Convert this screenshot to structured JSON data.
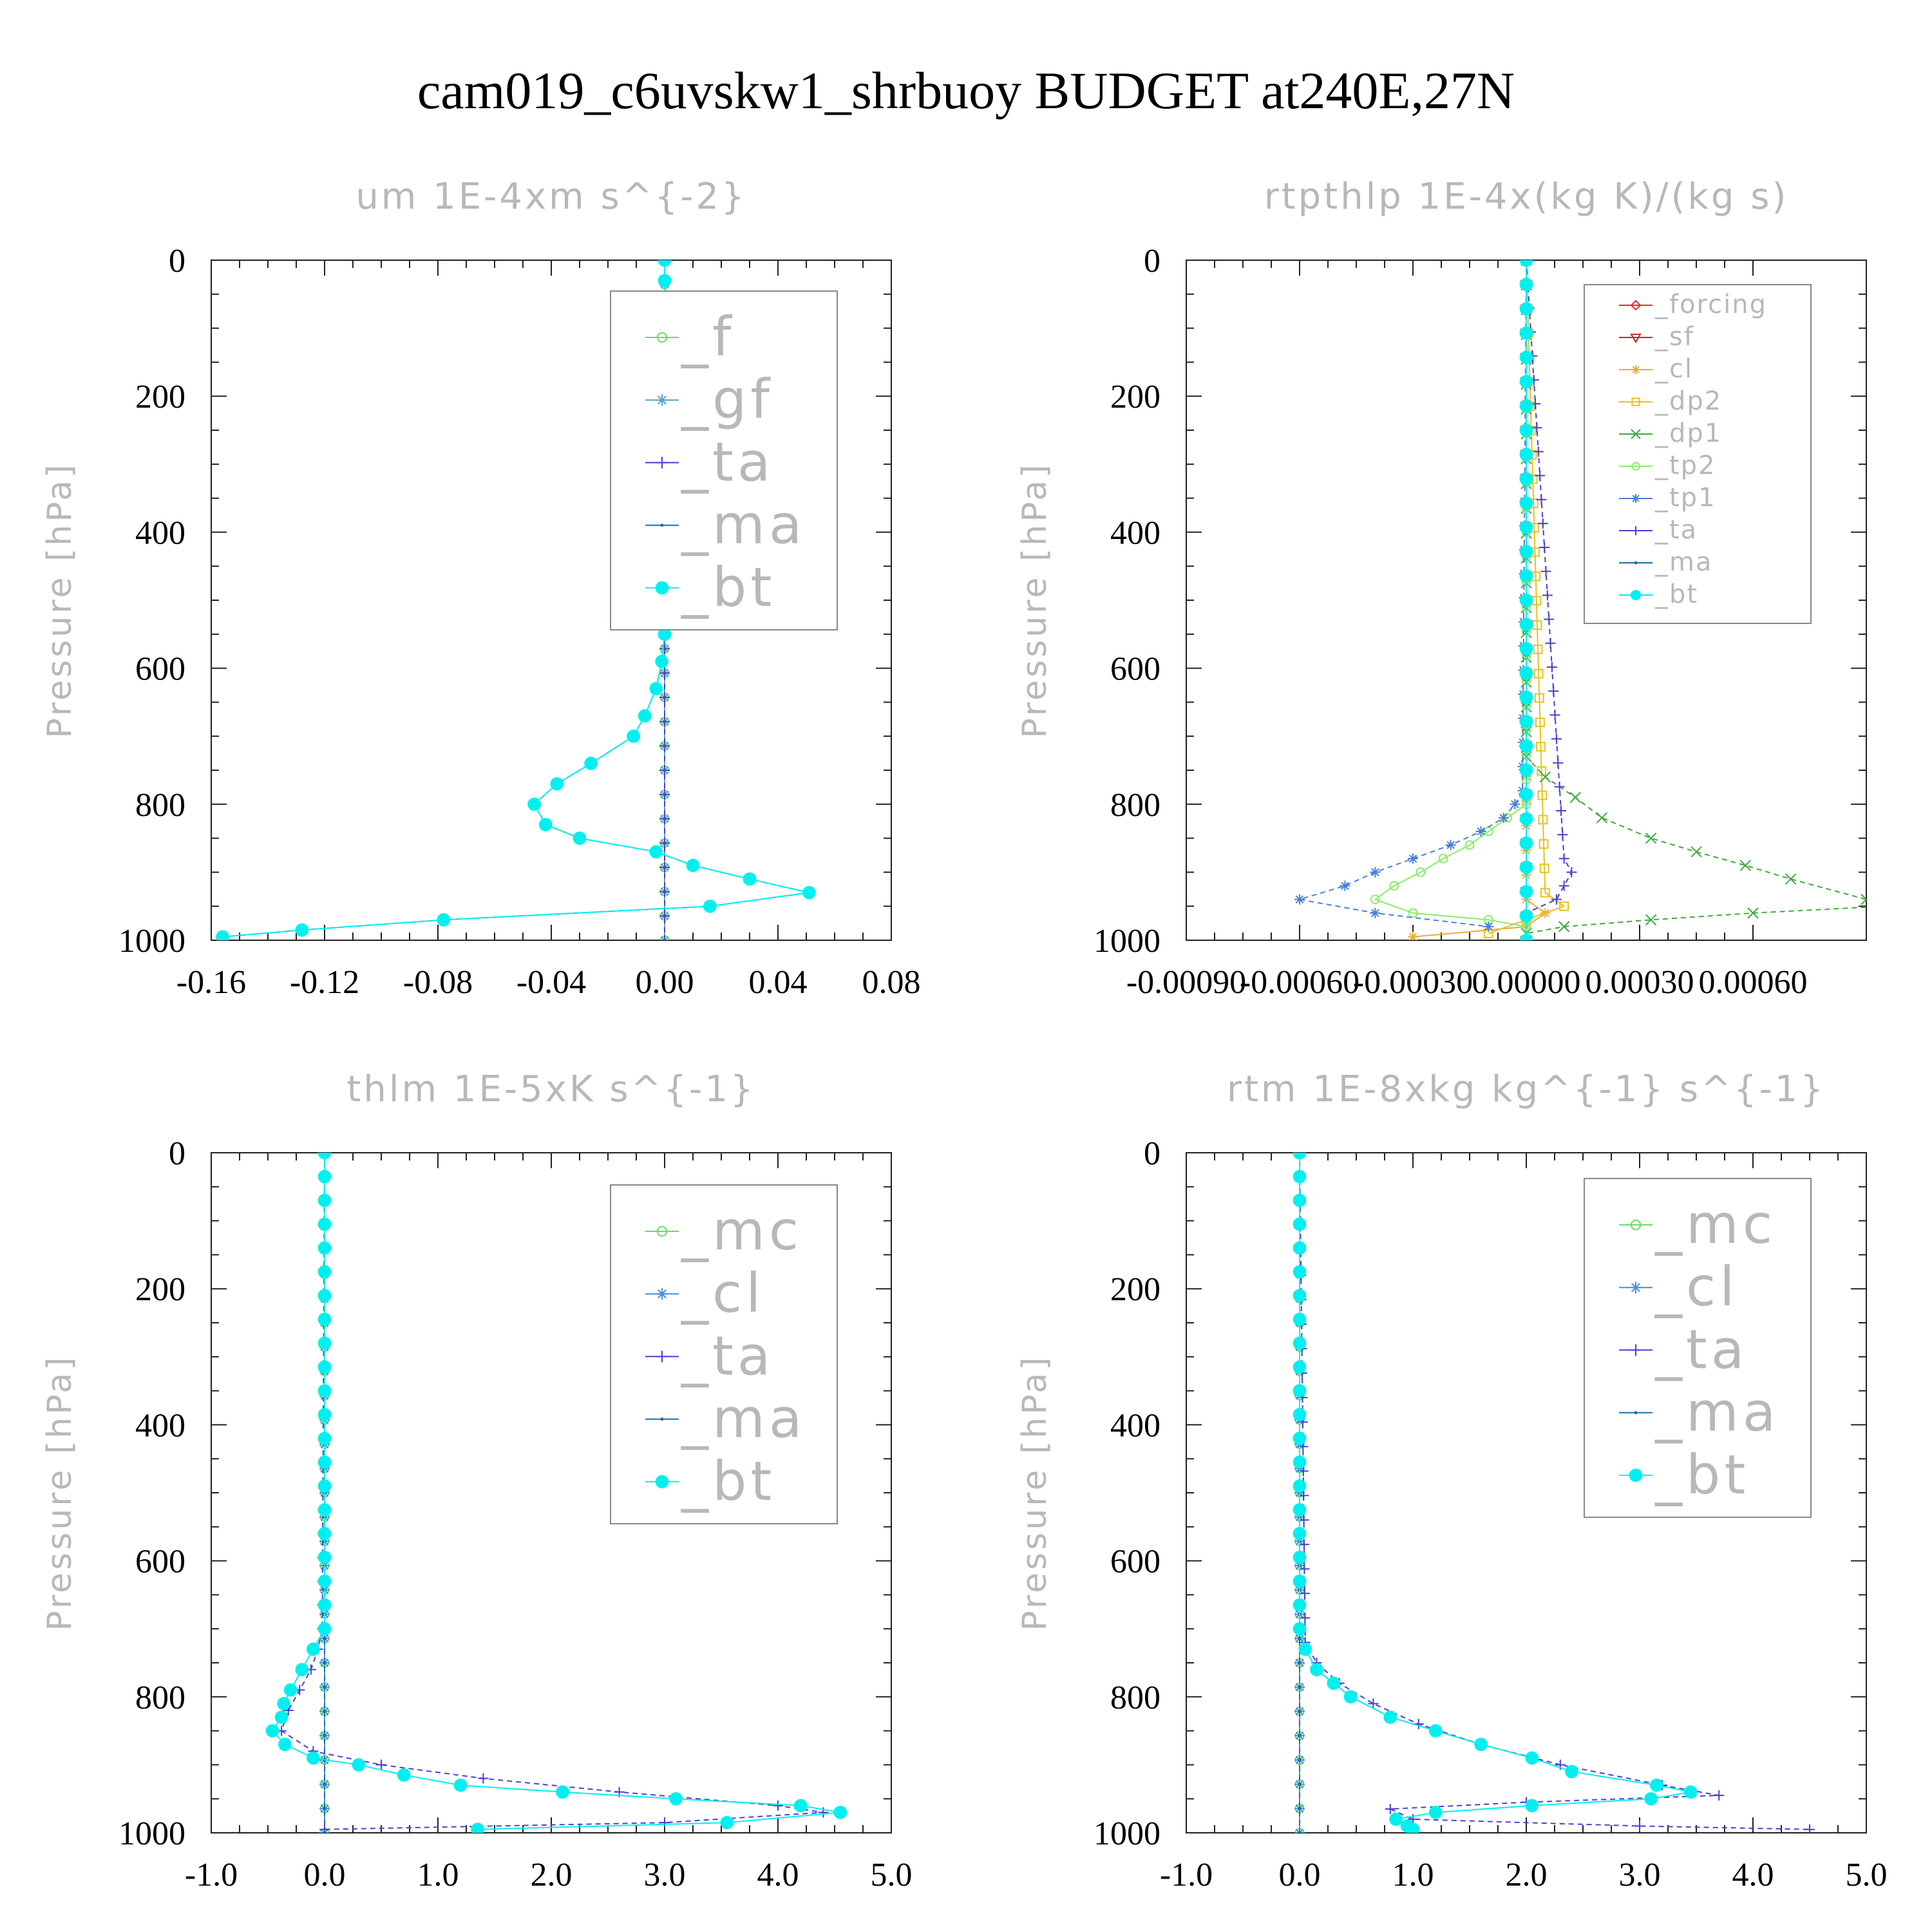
{
  "title": "cam019_c6uvskw1_shrbuoy  BUDGET at240E,27N",
  "colors": {
    "f": "#66dd66",
    "gf": "#5aa0c8",
    "ta": "#4a3fd0",
    "ma": "#1a6ea8",
    "bt": "#00f0f0",
    "forcing": "#e23030",
    "sf": "#d02020",
    "cl": "#4a8fd8",
    "cl_top": "#e8b030",
    "dp2": "#e8c020",
    "dp1": "#3caa3c",
    "tp2": "#88ee66",
    "tp1": "#4a7fd8",
    "mc": "#66dd66",
    "axis_text": "#000000",
    "label_gray": "#b8b8b8"
  },
  "chart_data": [
    {
      "type": "line",
      "title": "um  1E-4xm s^{-2}",
      "ylabel": "Pressure [hPa]",
      "xlim": [
        -0.16,
        0.08
      ],
      "ylim": [
        1000,
        0
      ],
      "xticks": [
        -0.16,
        -0.12,
        -0.08,
        -0.04,
        0.0,
        0.04,
        0.08
      ],
      "xtick_labels": [
        "-0.16",
        "-0.12",
        "-0.08",
        "-0.04",
        "0.00",
        "0.04",
        "0.08"
      ],
      "yticks": [
        0,
        200,
        400,
        600,
        800,
        1000
      ],
      "ytick_labels": [
        "0",
        "200",
        "400",
        "600",
        "800",
        "1000"
      ],
      "legend": [
        "_f",
        "_gf",
        "_ta",
        "_ma",
        "_bt"
      ],
      "legend_loc": "top-right",
      "series": [
        {
          "name": "_f",
          "p": [
            0,
            1000
          ],
          "x": [
            0.0,
            0.0
          ]
        },
        {
          "name": "_gf",
          "p": [
            0,
            1000
          ],
          "x": [
            0.0,
            0.0
          ]
        },
        {
          "name": "_ta",
          "p": [
            0,
            1000
          ],
          "x": [
            0.0,
            0.0
          ]
        },
        {
          "name": "_ma",
          "p": [
            0,
            30,
            60,
            100,
            120,
            140,
            170,
            200,
            220,
            250,
            270,
            290,
            310,
            340,
            380,
            410,
            450,
            480,
            510,
            550,
            590,
            630,
            670,
            700,
            740,
            770,
            800,
            830,
            850,
            870,
            890,
            910,
            930,
            950,
            970,
            985,
            995
          ],
          "x": [
            0.0,
            0.0,
            0.0,
            0.003,
            0.002,
            -0.002,
            -0.012,
            -0.014,
            -0.016,
            -0.007,
            -0.002,
            0.006,
            0.009,
            0.01,
            0.0,
            0.0,
            0.0,
            0.001,
            0.001,
            0.0,
            -0.001,
            -0.003,
            -0.007,
            -0.011,
            -0.026,
            -0.038,
            -0.046,
            -0.042,
            -0.03,
            -0.003,
            0.01,
            0.03,
            0.051,
            0.016,
            -0.078,
            -0.128,
            -0.156
          ]
        },
        {
          "name": "_bt",
          "p": [
            0,
            30,
            60,
            100,
            120,
            140,
            170,
            200,
            220,
            250,
            270,
            290,
            310,
            340,
            380,
            410,
            450,
            480,
            510,
            550,
            590,
            630,
            670,
            700,
            740,
            770,
            800,
            830,
            850,
            870,
            890,
            910,
            930,
            950,
            970,
            985,
            995
          ],
          "x": [
            0.0,
            0.0,
            0.0,
            0.003,
            0.002,
            -0.002,
            -0.012,
            -0.014,
            -0.016,
            -0.007,
            -0.002,
            0.006,
            0.009,
            0.01,
            0.0,
            0.0,
            0.0,
            0.001,
            0.001,
            0.0,
            -0.001,
            -0.003,
            -0.007,
            -0.011,
            -0.026,
            -0.038,
            -0.046,
            -0.042,
            -0.03,
            -0.003,
            0.01,
            0.03,
            0.051,
            0.016,
            -0.078,
            -0.128,
            -0.156
          ]
        }
      ]
    },
    {
      "type": "line",
      "title": "rtpthlp  1E-4x(kg K)/(kg s)",
      "ylabel": "Pressure [hPa]",
      "xlim": [
        -0.0009,
        0.0009
      ],
      "ylim": [
        1000,
        0
      ],
      "xticks": [
        -0.0009,
        -0.0006,
        -0.0003,
        0.0,
        0.0003,
        0.0006
      ],
      "xtick_labels": [
        "-0.00090",
        "-0.00060",
        "-0.00030",
        "0.00000",
        "0.00030",
        "0.00060"
      ],
      "yticks": [
        0,
        200,
        400,
        600,
        800,
        1000
      ],
      "ytick_labels": [
        "0",
        "200",
        "400",
        "600",
        "800",
        "1000"
      ],
      "legend": [
        "_forcing",
        "_sf",
        "_cl",
        "_dp2",
        "_dp1",
        "_tp2",
        "_tp1",
        "_ta",
        "_ma",
        "_bt"
      ],
      "legend_loc": "top-right",
      "series": [
        {
          "name": "_forcing",
          "p": [
            0,
            1000
          ],
          "x": [
            0.0,
            0.0
          ]
        },
        {
          "name": "_sf",
          "p": [
            0,
            1000
          ],
          "x": [
            0.0,
            0.0
          ]
        },
        {
          "name": "_cl",
          "p": [
            0,
            940,
            960,
            980,
            995
          ],
          "x": [
            0.0,
            0.0,
            5e-05,
            0.0,
            -0.0003
          ]
        },
        {
          "name": "_dp2",
          "p": [
            0,
            930,
            950,
            970,
            990
          ],
          "x": [
            0.0,
            5e-05,
            0.0001,
            0.0,
            -0.0001
          ]
        },
        {
          "name": "_dp1",
          "p": [
            0,
            730,
            760,
            790,
            820,
            850,
            870,
            890,
            910,
            940,
            950,
            960,
            970,
            980,
            990
          ],
          "x": [
            0.0,
            0.0,
            5e-05,
            0.00013,
            0.0002,
            0.00033,
            0.00045,
            0.00058,
            0.0007,
            0.0009,
            0.00095,
            0.0006,
            0.00033,
            0.0001,
            0.0
          ]
        },
        {
          "name": "_tp2",
          "p": [
            0,
            800,
            820,
            840,
            860,
            880,
            900,
            920,
            940,
            960,
            970,
            980
          ],
          "x": [
            0.0,
            0.0,
            -5e-05,
            -0.0001,
            -0.00015,
            -0.00022,
            -0.00028,
            -0.00035,
            -0.0004,
            -0.0003,
            -0.0001,
            0.0
          ]
        },
        {
          "name": "_tp1",
          "p": [
            0,
            780,
            800,
            820,
            840,
            860,
            880,
            900,
            920,
            940,
            960,
            980
          ],
          "x": [
            0.0,
            -1e-05,
            -3e-05,
            -6e-05,
            -0.00012,
            -0.0002,
            -0.0003,
            -0.0004,
            -0.00048,
            -0.0006,
            -0.0004,
            -0.0001
          ]
        },
        {
          "name": "_ta",
          "p": [
            0,
            880,
            900,
            920,
            940,
            960
          ],
          "x": [
            0.0,
            0.0001,
            0.00012,
            0.0001,
            8e-05,
            0.0
          ]
        },
        {
          "name": "_ma",
          "p": [
            0,
            1000
          ],
          "x": [
            0.0,
            0.0
          ]
        },
        {
          "name": "_bt",
          "p": [
            0,
            1000
          ],
          "x": [
            0.0,
            0.0
          ]
        }
      ]
    },
    {
      "type": "line",
      "title": "thlm  1E-5xK s^{-1}",
      "ylabel": "Pressure [hPa]",
      "xlim": [
        -1.0,
        5.0
      ],
      "ylim": [
        1000,
        0
      ],
      "xticks": [
        -1.0,
        0.0,
        1.0,
        2.0,
        3.0,
        4.0,
        5.0
      ],
      "xtick_labels": [
        "-1.0",
        "0.0",
        "1.0",
        "2.0",
        "3.0",
        "4.0",
        "5.0"
      ],
      "yticks": [
        0,
        200,
        400,
        600,
        800,
        1000
      ],
      "ytick_labels": [
        "0",
        "200",
        "400",
        "600",
        "800",
        "1000"
      ],
      "legend": [
        "_mc",
        "_cl",
        "_ta",
        "_ma",
        "_bt"
      ],
      "legend_loc": "top-right",
      "series": [
        {
          "name": "_mc",
          "p": [
            0,
            1000
          ],
          "x": [
            0.0,
            0.0
          ]
        },
        {
          "name": "_cl",
          "p": [
            0,
            1000
          ],
          "x": [
            0.0,
            0.0
          ]
        },
        {
          "name": "_ta",
          "p": [
            0,
            700,
            730,
            760,
            790,
            820,
            850,
            880,
            900,
            920,
            940,
            960,
            970,
            985,
            995
          ],
          "x": [
            0.0,
            -0.02,
            -0.06,
            -0.12,
            -0.22,
            -0.32,
            -0.38,
            -0.1,
            0.5,
            1.4,
            2.6,
            4.0,
            4.4,
            3.0,
            0.0
          ]
        },
        {
          "name": "_ma",
          "p": [
            0,
            1000
          ],
          "x": [
            0.0,
            0.0
          ]
        },
        {
          "name": "_bt",
          "p": [
            0,
            700,
            730,
            760,
            790,
            810,
            830,
            850,
            870,
            890,
            900,
            915,
            930,
            940,
            950,
            960,
            970,
            985,
            995
          ],
          "x": [
            0.0,
            0.0,
            -0.1,
            -0.2,
            -0.3,
            -0.36,
            -0.38,
            -0.46,
            -0.35,
            -0.1,
            0.3,
            0.7,
            1.2,
            2.1,
            3.1,
            4.2,
            4.55,
            3.55,
            1.35
          ]
        }
      ]
    },
    {
      "type": "line",
      "title": "rtm  1E-8xkg kg^{-1} s^{-1}",
      "ylabel": "Pressure [hPa]",
      "xlim": [
        -1.0,
        5.0
      ],
      "ylim": [
        1000,
        0
      ],
      "xticks": [
        -1.0,
        0.0,
        1.0,
        2.0,
        3.0,
        4.0,
        5.0
      ],
      "xtick_labels": [
        "-1.0",
        "0.0",
        "1.0",
        "2.0",
        "3.0",
        "4.0",
        "5.0"
      ],
      "yticks": [
        0,
        200,
        400,
        600,
        800,
        1000
      ],
      "ytick_labels": [
        "0",
        "200",
        "400",
        "600",
        "800",
        "1000"
      ],
      "legend": [
        "_mc",
        "_cl",
        "_ta",
        "_ma",
        "_bt"
      ],
      "legend_loc": "top-right",
      "series": [
        {
          "name": "_mc",
          "p": [
            0,
            1000
          ],
          "x": [
            0.0,
            0.0
          ]
        },
        {
          "name": "_cl",
          "p": [
            0,
            1000
          ],
          "x": [
            0.0,
            0.0
          ]
        },
        {
          "name": "_ta",
          "p": [
            0,
            720,
            750,
            780,
            810,
            840,
            870,
            900,
            930,
            945,
            955,
            965,
            980,
            990,
            995
          ],
          "x": [
            0.0,
            0.05,
            0.15,
            0.35,
            0.65,
            1.05,
            1.6,
            2.3,
            3.2,
            3.7,
            2.0,
            0.8,
            1.0,
            3.0,
            4.5
          ]
        },
        {
          "name": "_ma",
          "p": [
            0,
            1000
          ],
          "x": [
            0.0,
            0.0
          ]
        },
        {
          "name": "_bt",
          "p": [
            0,
            700,
            730,
            760,
            780,
            800,
            830,
            850,
            870,
            890,
            910,
            930,
            940,
            950,
            960,
            970,
            980,
            990,
            995
          ],
          "x": [
            0.0,
            0.0,
            0.05,
            0.15,
            0.3,
            0.45,
            0.8,
            1.2,
            1.6,
            2.05,
            2.4,
            3.15,
            3.45,
            3.1,
            2.05,
            1.2,
            0.85,
            0.95,
            1.0
          ]
        }
      ]
    }
  ]
}
